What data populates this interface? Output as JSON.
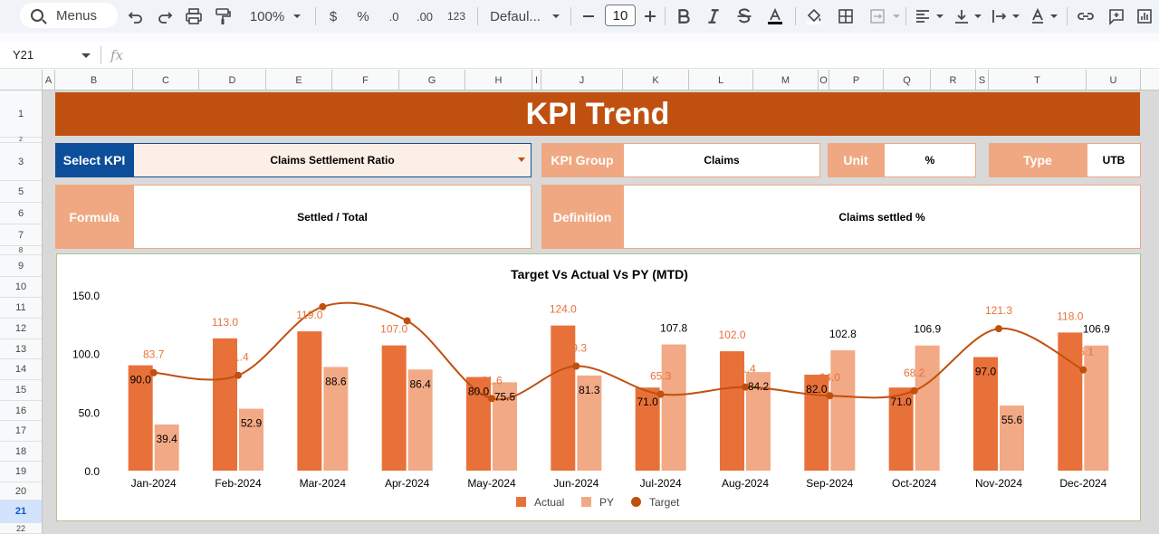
{
  "toolbar": {
    "menus_label": "Menus",
    "zoom": "100%",
    "currency": "$",
    "percent": "%",
    "dec_decrease": ".0",
    "dec_increase": ".00",
    "number_format": "123",
    "font": "Defaul...",
    "font_size": "10"
  },
  "formula_bar": {
    "cell_ref": "Y21",
    "fx": "fx"
  },
  "columns": [
    "A",
    "B",
    "C",
    "D",
    "E",
    "F",
    "G",
    "H",
    "I",
    "J",
    "K",
    "L",
    "M",
    "O",
    "P",
    "Q",
    "R",
    "S",
    "T",
    "U"
  ],
  "rows": [
    "1",
    "2",
    "3",
    "5",
    "6",
    "7",
    "8",
    "9",
    "10",
    "11",
    "12",
    "13",
    "14",
    "15",
    "16",
    "17",
    "18",
    "19",
    "20",
    "21",
    "22"
  ],
  "dashboard": {
    "title": "KPI Trend",
    "select_kpi_label": "Select KPI",
    "select_kpi_value": "Claims Settlement Ratio",
    "kpi_group_label": "KPI Group",
    "kpi_group_value": "Claims",
    "unit_label": "Unit",
    "unit_value": "%",
    "type_label": "Type",
    "type_value": "UTB",
    "formula_label": "Formula",
    "formula_value": "Settled / Total",
    "definition_label": "Definition",
    "definition_value": "Claims settled %"
  },
  "colors": {
    "actual": "#e8713a",
    "py": "#f2a985",
    "target": "#c0500f",
    "banner": "#c0500f",
    "label_bg": "#f0a882",
    "select_label_bg": "#0d4e9a"
  },
  "chart_data": {
    "type": "bar",
    "title": "Target Vs Actual Vs PY (MTD)",
    "categories": [
      "Jan-2024",
      "Feb-2024",
      "Mar-2024",
      "Apr-2024",
      "May-2024",
      "Jun-2024",
      "Jul-2024",
      "Aug-2024",
      "Sep-2024",
      "Oct-2024",
      "Nov-2024",
      "Dec-2024"
    ],
    "series": [
      {
        "name": "Actual",
        "kind": "bar",
        "values": [
          90.0,
          113.0,
          119.0,
          107.0,
          80.0,
          124.0,
          71.0,
          102.0,
          82.0,
          71.0,
          97.0,
          118.0
        ]
      },
      {
        "name": "PY",
        "kind": "bar",
        "values": [
          39.4,
          52.9,
          88.6,
          86.4,
          75.5,
          81.3,
          107.8,
          84.2,
          102.8,
          106.9,
          55.6,
          106.9
        ]
      },
      {
        "name": "Target",
        "kind": "line",
        "values": [
          83.7,
          81.4,
          140.0,
          128.0,
          61.6,
          89.3,
          65.3,
          71.4,
          64.0,
          68.2,
          121.3,
          86.1
        ]
      }
    ],
    "yticks": [
      "150.0",
      "100.0",
      "50.0",
      "0.0"
    ],
    "ylim": [
      0,
      150
    ],
    "legend": "bottom",
    "actual_labels": [
      "90.0",
      "113.0",
      "119.0",
      "107.0",
      "80.0",
      "124.0",
      "71.0",
      "102.0",
      "82.0",
      "71.0",
      "97.0",
      "118.0"
    ],
    "py_labels": [
      "39.4",
      "52.9",
      "88.6",
      "86.4",
      "75.5",
      "81.3",
      "107.8",
      "84.2",
      "102.8",
      "106.9",
      "55.6",
      "106.9"
    ],
    "target_labels": [
      "83.7",
      "81.4",
      "",
      "",
      "61.6",
      "89.3",
      "65.3",
      "71.4",
      "64.0",
      "68.2",
      "121.3",
      "86.1"
    ]
  }
}
